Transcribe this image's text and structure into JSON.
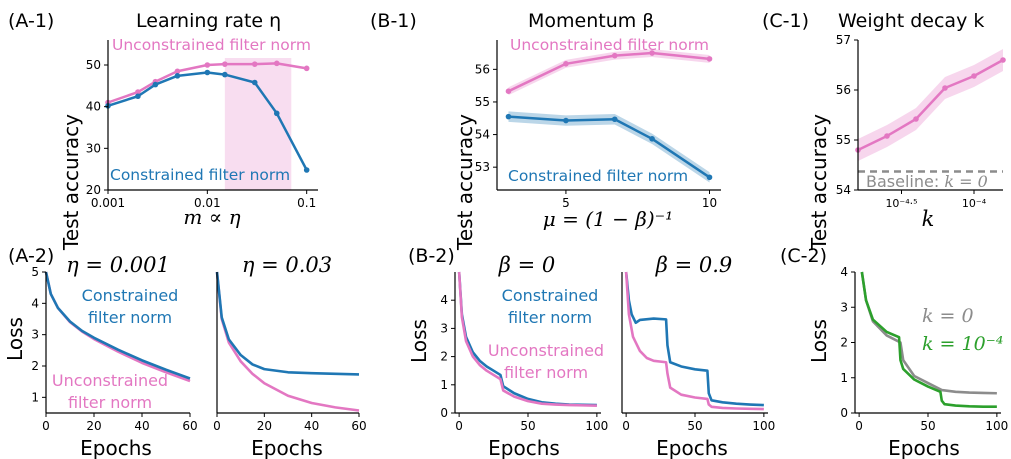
{
  "colors": {
    "pink": "#e377c2",
    "blue": "#1f77b4",
    "gray": "#8c8c8c",
    "green": "#2ca02c"
  },
  "panel_labels": {
    "a1": "(A-1)",
    "a2": "(A-2)",
    "b1": "(B-1)",
    "b2": "(B-2)",
    "c1": "(C-1)",
    "c2": "(C-2)"
  },
  "chart_data": [
    {
      "id": "A-1",
      "type": "line",
      "title": "Learning rate η",
      "xlabel": "m ∝ η",
      "ylabel": "Test accuracy",
      "xscale": "log",
      "xlim": [
        0.001,
        0.13
      ],
      "ylim": [
        20,
        56
      ],
      "xticks": [
        0.001,
        0.01,
        0.1
      ],
      "xtick_labels": [
        "0.001",
        "0.01",
        "0.1"
      ],
      "yticks": [
        20,
        30,
        40,
        50
      ],
      "ytick_labels": [
        "20",
        "30",
        "40",
        "50"
      ],
      "shaded_x_range": [
        0.015,
        0.07
      ],
      "series": [
        {
          "name": "Unconstrained filter norm",
          "color": "pink",
          "x": [
            0.001,
            0.002,
            0.003,
            0.005,
            0.01,
            0.015,
            0.03,
            0.05,
            0.1
          ],
          "y": [
            41,
            43.5,
            46,
            48.5,
            50,
            50.2,
            50.2,
            50.4,
            49.2
          ]
        },
        {
          "name": "Constrained filter norm",
          "color": "blue",
          "x": [
            0.001,
            0.002,
            0.003,
            0.005,
            0.01,
            0.015,
            0.03,
            0.05,
            0.1
          ],
          "y": [
            40.2,
            42.5,
            45.3,
            47.4,
            48.2,
            47.7,
            45.8,
            38.4,
            24.8
          ]
        }
      ]
    },
    {
      "id": "B-1",
      "type": "line",
      "title": "Momentum β",
      "xlabel": "μ = (1 − β)⁻¹",
      "ylabel": "Test accuracy",
      "xlim": [
        2.6,
        10.4
      ],
      "ylim": [
        52.3,
        56.9
      ],
      "xticks": [
        5,
        10
      ],
      "xtick_labels": [
        "5",
        "10"
      ],
      "yticks": [
        53,
        54,
        55,
        56
      ],
      "ytick_labels": [
        "53",
        "54",
        "55",
        "56"
      ],
      "series": [
        {
          "name": "Unconstrained filter norm",
          "color": "pink",
          "x": [
            3,
            5,
            6.7,
            8,
            10
          ],
          "y": [
            55.33,
            56.17,
            56.42,
            56.5,
            56.32
          ],
          "band": 0.12
        },
        {
          "name": "Constrained filter norm",
          "color": "blue",
          "x": [
            3,
            5,
            6.7,
            8,
            10
          ],
          "y": [
            54.55,
            54.43,
            54.47,
            53.87,
            52.69
          ],
          "band": 0.16
        }
      ]
    },
    {
      "id": "C-1",
      "type": "line",
      "title": "Weight decay k",
      "xlabel": "k",
      "ylabel": "Test accuracy",
      "xscale": "log",
      "xlim": [
        -4.8,
        -3.8
      ],
      "ylim": [
        54,
        57
      ],
      "xticks": [
        -4.5,
        -4.0
      ],
      "xtick_labels": [
        "10⁻⁴·⁵",
        "10⁻⁴"
      ],
      "yticks": [
        54,
        55,
        56,
        57
      ],
      "ytick_labels": [
        "54",
        "55",
        "56",
        "57"
      ],
      "series": [
        {
          "name": "k",
          "color": "pink",
          "x": [
            -4.8,
            -4.6,
            -4.4,
            -4.2,
            -4.0,
            -3.8
          ],
          "y": [
            54.8,
            55.08,
            55.42,
            56.04,
            56.28,
            56.6
          ],
          "band": 0.22
        }
      ],
      "baseline": {
        "value": 54.37,
        "label": "Baseline: k = 0"
      }
    },
    {
      "id": "A-2-left",
      "type": "line",
      "title": "η = 0.001",
      "xlabel": "Epochs",
      "ylabel": "Loss",
      "xlim": [
        0,
        60
      ],
      "ylim": [
        0.5,
        5
      ],
      "xticks": [
        0,
        20,
        40,
        60
      ],
      "xtick_labels": [
        "0",
        "20",
        "40",
        "60"
      ],
      "yticks": [
        1,
        2,
        3,
        4,
        5
      ],
      "ytick_labels": [
        "1",
        "2",
        "3",
        "4",
        "5"
      ],
      "series": [
        {
          "name": "Unconstrained filter norm",
          "color": "pink",
          "x": [
            0,
            2,
            5,
            10,
            15,
            20,
            30,
            40,
            50,
            60
          ],
          "y": [
            5.0,
            4.3,
            3.85,
            3.4,
            3.1,
            2.86,
            2.46,
            2.1,
            1.8,
            1.52
          ]
        },
        {
          "name": "Constrained filter norm",
          "color": "blue",
          "x": [
            0,
            2,
            5,
            10,
            15,
            20,
            30,
            40,
            50,
            60
          ],
          "y": [
            5.0,
            4.3,
            3.85,
            3.42,
            3.12,
            2.9,
            2.52,
            2.18,
            1.88,
            1.6
          ]
        }
      ]
    },
    {
      "id": "A-2-right",
      "type": "line",
      "title": "η = 0.03",
      "xlabel": "Epochs",
      "xlim": [
        0,
        60
      ],
      "ylim": [
        0.5,
        5
      ],
      "xticks": [
        0,
        20,
        40,
        60
      ],
      "xtick_labels": [
        "0",
        "20",
        "40",
        "60"
      ],
      "series": [
        {
          "name": "Unconstrained filter norm",
          "color": "pink",
          "x": [
            0,
            2,
            5,
            10,
            15,
            20,
            30,
            40,
            50,
            60
          ],
          "y": [
            5.0,
            3.5,
            2.75,
            2.15,
            1.75,
            1.45,
            1.05,
            0.82,
            0.68,
            0.58
          ]
        },
        {
          "name": "Constrained filter norm",
          "color": "blue",
          "x": [
            0,
            2,
            5,
            10,
            15,
            20,
            30,
            40,
            50,
            60
          ],
          "y": [
            5.0,
            3.55,
            2.85,
            2.35,
            2.05,
            1.9,
            1.8,
            1.77,
            1.75,
            1.73
          ]
        }
      ]
    },
    {
      "id": "B-2-left",
      "type": "line",
      "title": "β = 0",
      "xlabel": "Epochs",
      "ylabel": "Loss",
      "xlim": [
        -3,
        103
      ],
      "ylim": [
        0,
        5
      ],
      "xticks": [
        0,
        50,
        100
      ],
      "xtick_labels": [
        "0",
        "50",
        "100"
      ],
      "yticks": [
        0,
        1,
        2,
        3,
        4
      ],
      "ytick_labels": [
        "0",
        "1",
        "2",
        "3",
        "4"
      ],
      "series": [
        {
          "name": "Constrained filter norm",
          "color": "blue",
          "x": [
            0,
            2,
            5,
            10,
            15,
            20,
            25,
            30,
            32,
            40,
            50,
            60,
            70,
            80,
            90,
            100
          ],
          "y": [
            5.0,
            3.5,
            2.7,
            2.15,
            1.85,
            1.65,
            1.5,
            1.35,
            0.95,
            0.7,
            0.5,
            0.38,
            0.33,
            0.3,
            0.29,
            0.28
          ]
        },
        {
          "name": "Unconstrained filter norm",
          "color": "pink",
          "x": [
            0,
            2,
            5,
            10,
            15,
            20,
            25,
            30,
            32,
            40,
            50,
            60,
            70,
            80,
            90,
            100
          ],
          "y": [
            5.0,
            3.4,
            2.55,
            2.0,
            1.7,
            1.5,
            1.35,
            1.2,
            0.8,
            0.58,
            0.42,
            0.33,
            0.3,
            0.28,
            0.27,
            0.26
          ]
        }
      ]
    },
    {
      "id": "B-2-right",
      "type": "line",
      "title": "β = 0.9",
      "xlabel": "Epochs",
      "xlim": [
        -3,
        103
      ],
      "ylim": [
        0,
        5
      ],
      "xticks": [
        0,
        50,
        100
      ],
      "xtick_labels": [
        "0",
        "50",
        "100"
      ],
      "series": [
        {
          "name": "Constrained filter norm",
          "color": "blue",
          "x": [
            0,
            2,
            4,
            7,
            10,
            20,
            29,
            30,
            32,
            40,
            50,
            59,
            60,
            62,
            70,
            80,
            90,
            100
          ],
          "y": [
            5.0,
            4.0,
            3.5,
            3.2,
            3.3,
            3.35,
            3.32,
            2.4,
            1.8,
            1.65,
            1.55,
            1.5,
            0.7,
            0.45,
            0.38,
            0.33,
            0.3,
            0.28
          ]
        },
        {
          "name": "Unconstrained filter norm",
          "color": "pink",
          "x": [
            0,
            2,
            5,
            10,
            15,
            20,
            29,
            30,
            32,
            40,
            50,
            59,
            60,
            62,
            70,
            80,
            90,
            100
          ],
          "y": [
            5.0,
            3.5,
            2.7,
            2.2,
            1.95,
            1.85,
            1.8,
            1.4,
            0.9,
            0.65,
            0.55,
            0.5,
            0.3,
            0.22,
            0.18,
            0.16,
            0.15,
            0.14
          ]
        }
      ]
    },
    {
      "id": "C-2",
      "type": "line",
      "xlabel": "Epochs",
      "ylabel": "Loss",
      "xlim": [
        -3,
        103
      ],
      "ylim": [
        0,
        4
      ],
      "xticks": [
        0,
        50,
        100
      ],
      "xtick_labels": [
        "0",
        "50",
        "100"
      ],
      "yticks": [
        0,
        1,
        2,
        3,
        4
      ],
      "ytick_labels": [
        "0",
        "1",
        "2",
        "3",
        "4"
      ],
      "series": [
        {
          "name": "k = 0",
          "color": "gray",
          "x": [
            2,
            5,
            10,
            20,
            30,
            32,
            40,
            50,
            60,
            70,
            80,
            90,
            100
          ],
          "y": [
            4.0,
            3.2,
            2.6,
            2.2,
            2.0,
            1.5,
            1.05,
            0.85,
            0.65,
            0.6,
            0.58,
            0.57,
            0.56
          ]
        },
        {
          "name": "k = 10⁻⁴",
          "color": "green",
          "x": [
            2,
            5,
            10,
            20,
            29,
            30,
            32,
            40,
            50,
            59,
            60,
            62,
            70,
            80,
            90,
            100
          ],
          "y": [
            4.0,
            3.2,
            2.65,
            2.3,
            2.15,
            1.5,
            1.25,
            0.95,
            0.75,
            0.6,
            0.35,
            0.25,
            0.21,
            0.19,
            0.18,
            0.18
          ]
        }
      ]
    }
  ],
  "labels": {
    "a1_unconstrained": "Unconstrained filter norm",
    "a1_constrained": "Constrained filter norm",
    "b1_unconstrained": "Unconstrained filter norm",
    "b1_constrained": "Constrained filter norm",
    "c1_baseline_prefix": "Baseline: ",
    "c1_baseline_var": "k = 0",
    "a2_constrained_l1": "Constrained",
    "a2_constrained_l2": "filter norm",
    "a2_unconstrained_l1": "Unconstrained",
    "a2_unconstrained_l2": "filter norm",
    "b2_constrained_l1": "Constrained",
    "b2_constrained_l2": "filter norm",
    "b2_unconstrained_l1": "Unconstrained",
    "b2_unconstrained_l2": "filter norm",
    "c2_k0": "k = 0",
    "c2_k1": "k = 10⁻⁴"
  }
}
